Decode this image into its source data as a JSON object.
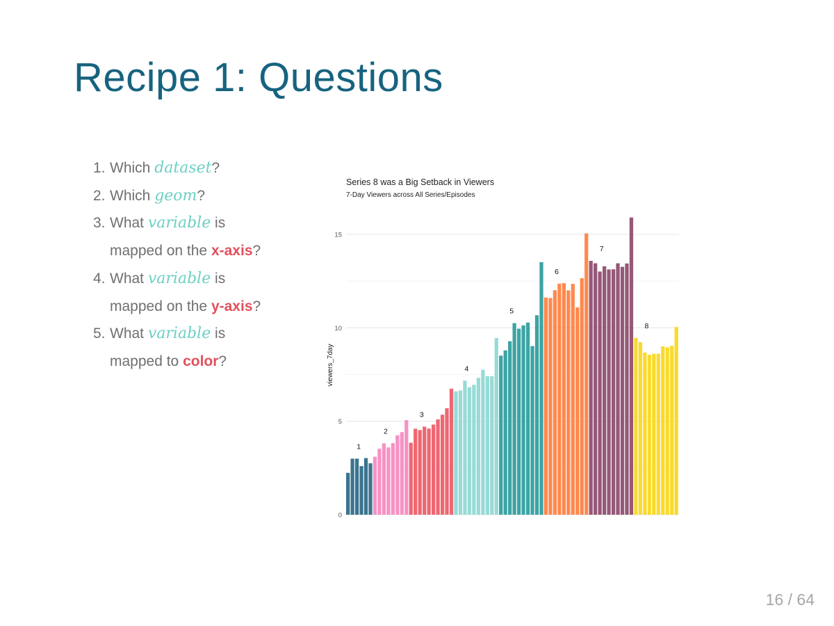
{
  "slide": {
    "title": "Recipe 1: Questions",
    "page_number": "16 / 64"
  },
  "questions": [
    {
      "number": "1.",
      "parts": [
        {
          "text": "Which ",
          "style": "plain"
        },
        {
          "text": "dataset",
          "style": "keyword"
        },
        {
          "text": "?",
          "style": "plain"
        }
      ]
    },
    {
      "number": "2.",
      "parts": [
        {
          "text": "Which ",
          "style": "plain"
        },
        {
          "text": "geom",
          "style": "keyword"
        },
        {
          "text": "?",
          "style": "plain"
        }
      ]
    },
    {
      "number": "3.",
      "parts": [
        {
          "text": "What ",
          "style": "plain"
        },
        {
          "text": "variable",
          "style": "keyword"
        },
        {
          "text": " is mapped on the ",
          "style": "plain"
        },
        {
          "text": "x-axis",
          "style": "highlight"
        },
        {
          "text": "?",
          "style": "plain"
        }
      ]
    },
    {
      "number": "4.",
      "parts": [
        {
          "text": "What ",
          "style": "plain"
        },
        {
          "text": "variable",
          "style": "keyword"
        },
        {
          "text": " is mapped on the ",
          "style": "plain"
        },
        {
          "text": "y-axis",
          "style": "highlight"
        },
        {
          "text": "?",
          "style": "plain"
        }
      ]
    },
    {
      "number": "5.",
      "parts": [
        {
          "text": "What ",
          "style": "plain"
        },
        {
          "text": "variable",
          "style": "keyword"
        },
        {
          "text": " is mapped to ",
          "style": "plain"
        },
        {
          "text": "color",
          "style": "highlight"
        },
        {
          "text": "?",
          "style": "plain"
        }
      ]
    }
  ],
  "colors": {
    "title": "#17637f",
    "keyword": "#6fcfc5",
    "highlight": "#e2505c",
    "body_text": "#6f6f6f",
    "page_number": "#a6a6a6"
  },
  "chart_data": {
    "type": "bar",
    "title": "Series 8 was a Big Setback in Viewers",
    "subtitle": "7-Day Viewers across All Series/Episodes",
    "xlabel": "",
    "ylabel": "viewers_7day",
    "ylim": [
      0,
      16
    ],
    "yticks": [
      0,
      5,
      10,
      15
    ],
    "grid": true,
    "legend": "none",
    "series": [
      {
        "label": "1",
        "color": "#2a6886",
        "values": [
          2.24,
          3.0,
          3.0,
          2.6,
          3.03,
          2.75
        ]
      },
      {
        "label": "2",
        "color": "#f789bf",
        "values": [
          3.1,
          3.53,
          3.82,
          3.6,
          3.83,
          4.25,
          4.42,
          5.06
        ]
      },
      {
        "label": "3",
        "color": "#ec5a66",
        "values": [
          3.85,
          4.6,
          4.53,
          4.71,
          4.61,
          4.82,
          5.1,
          5.35,
          5.7,
          6.74
        ]
      },
      {
        "label": "4",
        "color": "#8fd8d3",
        "values": [
          6.6,
          6.65,
          7.17,
          6.82,
          6.95,
          7.32,
          7.76,
          7.41,
          7.41,
          9.45
        ]
      },
      {
        "label": "5",
        "color": "#2d9c9c",
        "values": [
          8.51,
          8.79,
          9.28,
          10.25,
          9.95,
          10.13,
          10.28,
          9.02,
          10.67,
          13.51
        ]
      },
      {
        "label": "6",
        "color": "#ff7f40",
        "values": [
          11.62,
          11.59,
          12.01,
          12.36,
          12.39,
          12.0,
          12.35,
          11.09,
          12.65,
          15.05
        ]
      },
      {
        "label": "7",
        "color": "#8c4a6c",
        "values": [
          13.58,
          13.45,
          13.01,
          13.29,
          13.12,
          13.13,
          13.45,
          13.26,
          13.44,
          15.9
        ]
      },
      {
        "label": "8",
        "color": "#f9d71c",
        "values": [
          9.46,
          9.23,
          8.68,
          8.55,
          8.61,
          8.61,
          9.01,
          8.95,
          9.03,
          10.04
        ]
      }
    ]
  }
}
